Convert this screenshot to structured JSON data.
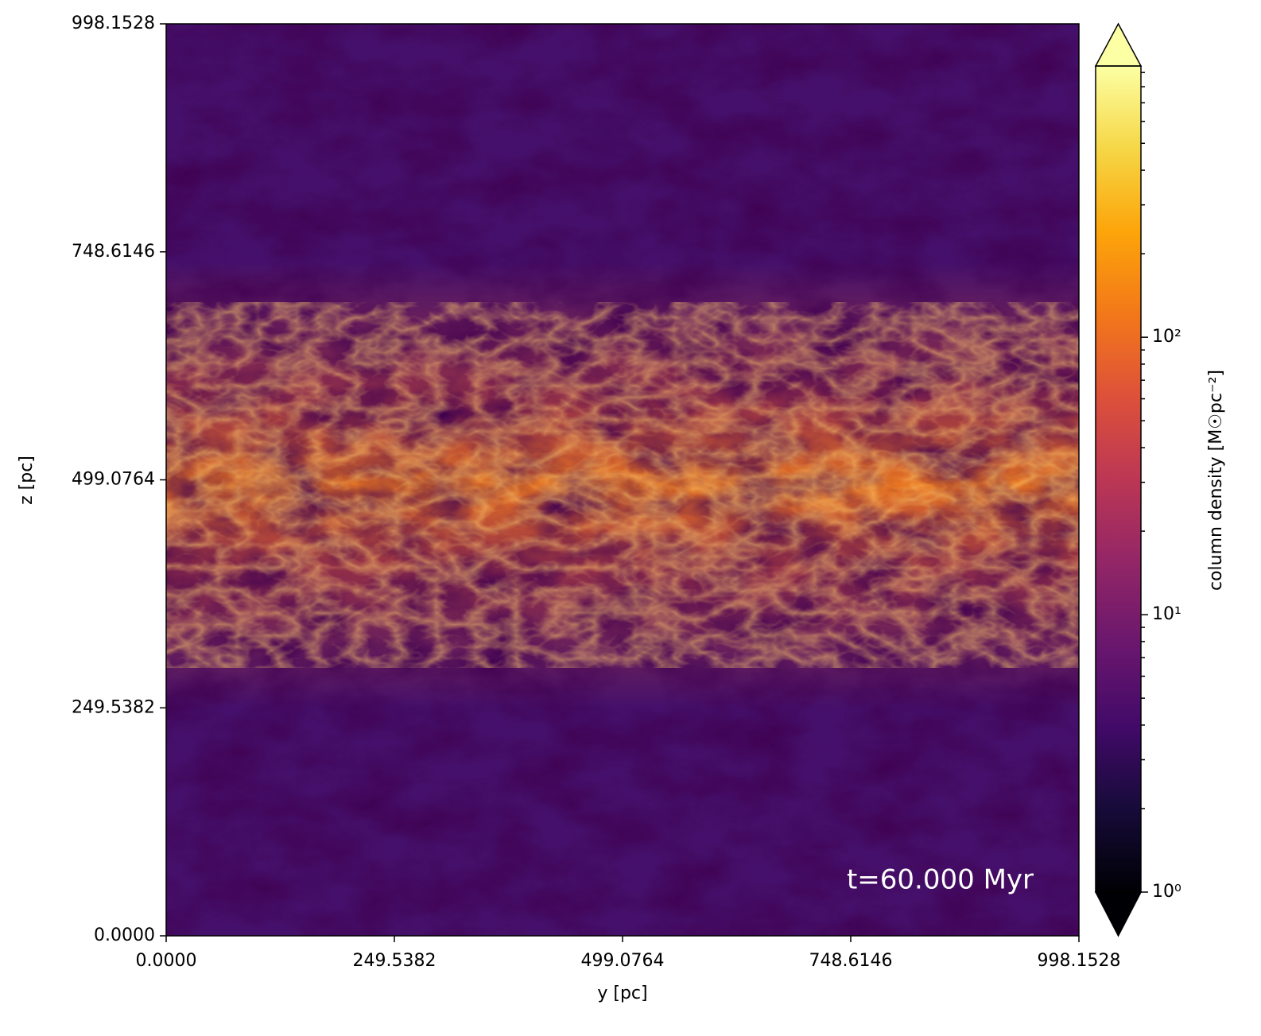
{
  "chart_data": {
    "type": "image",
    "xlabel": "y [pc]",
    "ylabel": "z [pc]",
    "annotation": "t=60.000 Myr",
    "xlim": [
      0,
      998.1528
    ],
    "xticks": [
      {
        "value": 0,
        "label": "0.0000"
      },
      249.5382,
      499.0764,
      748.6146,
      998.1528
    ],
    "ylim": [
      0,
      998.1528
    ],
    "yticks": [
      {
        "value": 0,
        "label": "0.0000"
      },
      249.5382,
      499.0764,
      748.6146,
      998.1528
    ],
    "colormap": "inferno",
    "colorbar_label": "column density [M☉pc⁻²]",
    "clim": [
      1,
      950
    ],
    "clog": true,
    "extend": "both",
    "cticks": [
      {
        "value": 1,
        "label": "10⁰"
      },
      {
        "value": 10,
        "label": "10¹"
      },
      {
        "value": 100,
        "label": "10²"
      }
    ]
  }
}
